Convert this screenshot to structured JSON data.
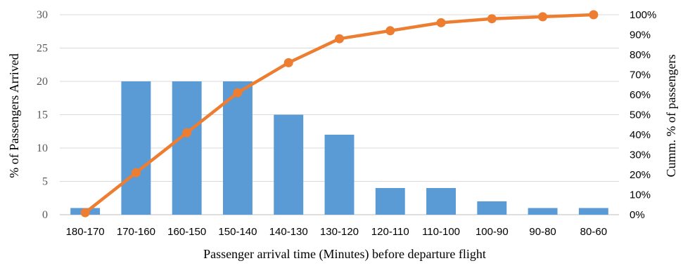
{
  "chart_data": {
    "type": "bar",
    "title": "",
    "xlabel": "Passenger arrival time (Minutes) before departure flight",
    "ylabel": "% of Passengers Arrived",
    "y2label": "Cumm. % of passengers",
    "categories": [
      "180-170",
      "170-160",
      "160-150",
      "150-140",
      "140-130",
      "130-120",
      "120-110",
      "110-100",
      "100-90",
      "90-80",
      "80-60"
    ],
    "ylim": [
      0,
      30
    ],
    "y_ticks": [
      "0",
      "5",
      "10",
      "15",
      "20",
      "25",
      "30"
    ],
    "y2lim": [
      0,
      100
    ],
    "y2_ticks": [
      "0%",
      "10%",
      "20%",
      "30%",
      "40%",
      "50%",
      "60%",
      "70%",
      "80%",
      "90%",
      "100%"
    ],
    "grid": true,
    "series": [
      {
        "type": "bar",
        "axis": "left",
        "color": "#5b9bd5",
        "values": [
          1,
          20,
          20,
          20,
          15,
          12,
          4,
          4,
          2,
          1,
          1
        ]
      },
      {
        "type": "line",
        "axis": "right",
        "color": "#ed7d31",
        "values": [
          1,
          21,
          41,
          61,
          76,
          88,
          92,
          96,
          98,
          99,
          100
        ]
      }
    ]
  }
}
